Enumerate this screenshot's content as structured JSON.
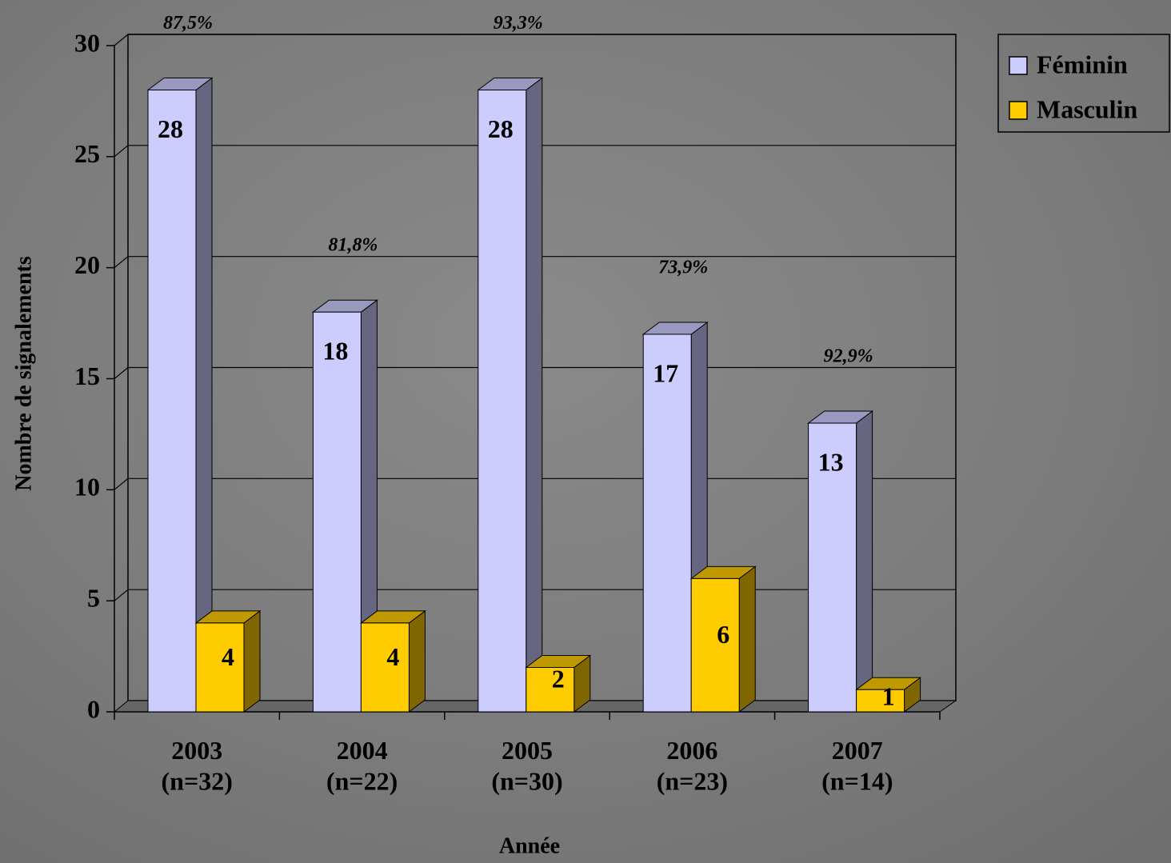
{
  "chart_data": {
    "type": "bar3d",
    "categories": [
      "2003\n(n=32)",
      "2004\n(n=22)",
      "2005\n(n=30)",
      "2006\n(n=23)",
      "2007\n(n=14)"
    ],
    "series": [
      {
        "name": "Féminin",
        "color": "#ccccff",
        "values": [
          28,
          18,
          28,
          17,
          13
        ]
      },
      {
        "name": "Masculin",
        "color": "#ffcc00",
        "values": [
          4,
          4,
          2,
          6,
          1
        ]
      }
    ],
    "annotations": [
      "87,5%",
      "81,8%",
      "93,3%",
      "73,9%",
      "92,9%"
    ],
    "x_label": "Année",
    "y_label": "Nombre de signalements",
    "ylim": [
      0,
      30
    ],
    "yticks": [
      0,
      5,
      10,
      15,
      20,
      25,
      30
    ],
    "grid": true,
    "legend": "top-right"
  }
}
